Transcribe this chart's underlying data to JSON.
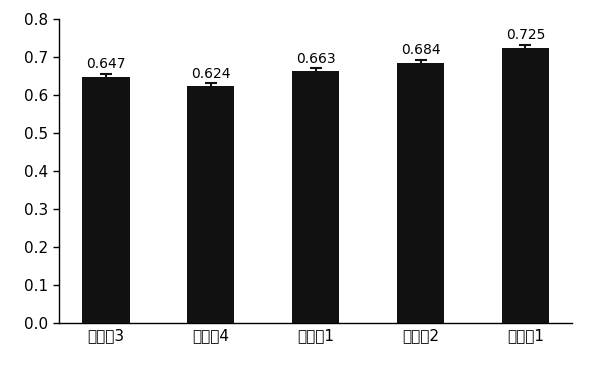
{
  "categories": [
    "对比失3",
    "对比失4",
    "对比失1",
    "对比失2",
    "实施失1"
  ],
  "values": [
    0.647,
    0.624,
    0.663,
    0.684,
    0.725
  ],
  "errors": [
    0.008,
    0.007,
    0.007,
    0.008,
    0.007
  ],
  "bar_color": "#111111",
  "error_color": "#111111",
  "ylim": [
    0,
    0.8
  ],
  "yticks": [
    0,
    0.1,
    0.2,
    0.3,
    0.4,
    0.5,
    0.6,
    0.7,
    0.8
  ],
  "tick_fontsize": 11,
  "value_fontsize": 10,
  "bar_width": 0.45,
  "figsize": [
    5.9,
    3.8
  ],
  "dpi": 100
}
